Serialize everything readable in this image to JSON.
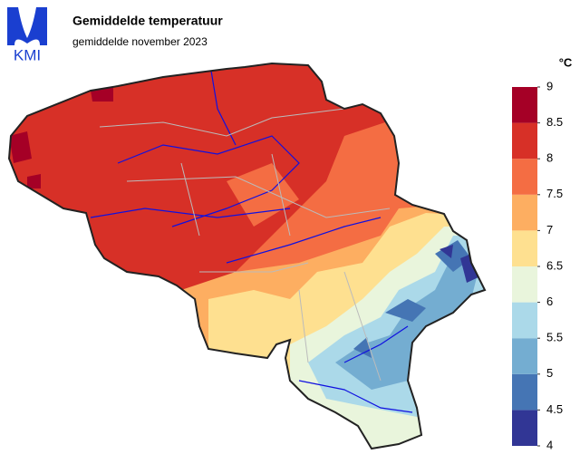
{
  "chart_data": {
    "type": "map",
    "logo": "KMI",
    "title": "Gemiddelde temperatuur",
    "subtitle": "gemiddelde november 2023",
    "colorbar": {
      "unit": "°C",
      "bins": [
        4,
        4.5,
        5,
        5.5,
        6,
        6.5,
        7,
        7.5,
        8,
        8.5,
        9
      ],
      "colors": [
        "#313695",
        "#4575b4",
        "#74add1",
        "#abd9e9",
        "#e9f5dc",
        "#fee090",
        "#fdae61",
        "#f46d43",
        "#d73027",
        "#a50026"
      ]
    }
  }
}
